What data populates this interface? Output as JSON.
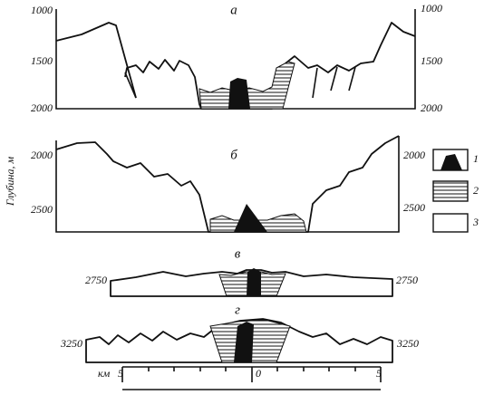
{
  "y_axis_label": "Глубина, м",
  "panels": [
    {
      "label": "а",
      "left_ticks": [
        "1000",
        "1500",
        "2000"
      ],
      "right_ticks": [
        "1000",
        "1500",
        "2000"
      ]
    },
    {
      "label": "б",
      "left_ticks": [
        "2000",
        "2500"
      ],
      "right_ticks": [
        "2000",
        "2500"
      ]
    },
    {
      "label": "в",
      "left_ticks": [
        "2750"
      ],
      "right_ticks": [
        "2750"
      ]
    },
    {
      "label": "г",
      "left_ticks": [
        "3250"
      ],
      "right_ticks": [
        "3250"
      ]
    }
  ],
  "legend": [
    "1",
    "2",
    "3"
  ],
  "scale": {
    "unit": "км",
    "ticks": [
      "5",
      "0",
      "5"
    ]
  }
}
